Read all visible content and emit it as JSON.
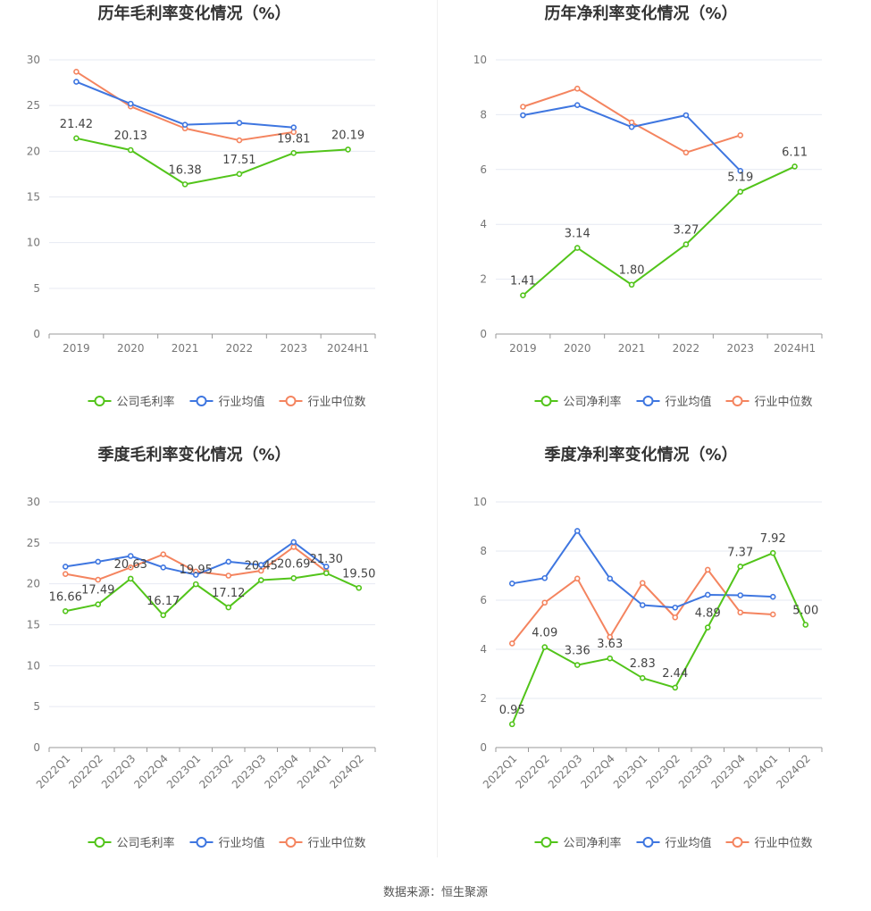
{
  "chart_data": [
    {
      "type": "line",
      "title": "历年毛利率变化情况（%）",
      "categories": [
        "2019",
        "2020",
        "2021",
        "2022",
        "2023",
        "2024H1"
      ],
      "ylim": [
        0,
        30
      ],
      "yticks": [
        0,
        5,
        10,
        15,
        20,
        25,
        30
      ],
      "grid": true,
      "legend": "bottom",
      "series": [
        {
          "name": "公司毛利率",
          "color": "#52c41a",
          "labeled": true,
          "values": [
            21.42,
            20.13,
            16.38,
            17.51,
            19.81,
            20.19
          ],
          "labels": [
            "21.42",
            "20.13",
            "16.38",
            "17.51",
            "19.81",
            "20.19"
          ]
        },
        {
          "name": "行业均值",
          "color": "#3e76e0",
          "labeled": false,
          "values": [
            27.6,
            25.2,
            22.9,
            23.1,
            22.6,
            null
          ]
        },
        {
          "name": "行业中位数",
          "color": "#f4845f",
          "labeled": false,
          "values": [
            28.7,
            24.9,
            22.5,
            21.2,
            22.1,
            null
          ]
        }
      ]
    },
    {
      "type": "line",
      "title": "历年净利率变化情况（%）",
      "categories": [
        "2019",
        "2020",
        "2021",
        "2022",
        "2023",
        "2024H1"
      ],
      "ylim": [
        0,
        10
      ],
      "yticks": [
        0,
        2,
        4,
        6,
        8,
        10
      ],
      "grid": true,
      "legend": "bottom",
      "series": [
        {
          "name": "公司净利率",
          "color": "#52c41a",
          "labeled": true,
          "values": [
            1.41,
            3.14,
            1.8,
            3.27,
            5.19,
            6.11
          ],
          "labels": [
            "1.41",
            "3.14",
            "1.80",
            "3.27",
            "5.19",
            "6.11"
          ]
        },
        {
          "name": "行业均值",
          "color": "#3e76e0",
          "labeled": false,
          "values": [
            7.98,
            8.35,
            7.55,
            7.98,
            5.95,
            null
          ]
        },
        {
          "name": "行业中位数",
          "color": "#f4845f",
          "labeled": false,
          "values": [
            8.29,
            8.95,
            7.72,
            6.62,
            7.25,
            null
          ]
        }
      ]
    },
    {
      "type": "line",
      "title": "季度毛利率变化情况（%）",
      "categories": [
        "2022Q1",
        "2022Q2",
        "2022Q3",
        "2022Q4",
        "2023Q1",
        "2023Q2",
        "2023Q3",
        "2023Q4",
        "2024Q1",
        "2024Q2"
      ],
      "ylim": [
        0,
        30
      ],
      "yticks": [
        0,
        5,
        10,
        15,
        20,
        25,
        30
      ],
      "grid": true,
      "legend": "bottom",
      "rotate_x": true,
      "series": [
        {
          "name": "公司毛利率",
          "color": "#52c41a",
          "labeled": true,
          "values": [
            16.66,
            17.49,
            20.63,
            16.17,
            19.95,
            17.12,
            20.45,
            20.69,
            21.3,
            19.5
          ],
          "labels": [
            "16.66",
            "17.49",
            "20.63",
            "16.17",
            "19.95",
            "17.12",
            "20.45",
            "20.69",
            "21.30",
            "19.50"
          ]
        },
        {
          "name": "行业均值",
          "color": "#3e76e0",
          "labeled": false,
          "values": [
            22.1,
            22.7,
            23.4,
            22.0,
            21.1,
            22.7,
            22.3,
            25.1,
            22.1,
            null
          ]
        },
        {
          "name": "行业中位数",
          "color": "#f4845f",
          "labeled": false,
          "values": [
            21.2,
            20.5,
            22.0,
            23.6,
            21.5,
            21.0,
            21.6,
            24.5,
            21.5,
            null
          ]
        }
      ]
    },
    {
      "type": "line",
      "title": "季度净利率变化情况（%）",
      "categories": [
        "2022Q1",
        "2022Q2",
        "2022Q3",
        "2022Q4",
        "2023Q1",
        "2023Q2",
        "2023Q3",
        "2023Q4",
        "2024Q1",
        "2024Q2"
      ],
      "ylim": [
        0,
        10
      ],
      "yticks": [
        0,
        2,
        4,
        6,
        8,
        10
      ],
      "grid": true,
      "legend": "bottom",
      "rotate_x": true,
      "series": [
        {
          "name": "公司净利率",
          "color": "#52c41a",
          "labeled": true,
          "values": [
            0.95,
            4.09,
            3.36,
            3.63,
            2.83,
            2.44,
            4.89,
            7.37,
            7.92,
            5.0
          ],
          "labels": [
            "0.95",
            "4.09",
            "3.36",
            "3.63",
            "2.83",
            "2.44",
            "4.89",
            "7.37",
            "7.92",
            "5.00"
          ]
        },
        {
          "name": "行业均值",
          "color": "#3e76e0",
          "labeled": false,
          "values": [
            6.68,
            6.9,
            8.82,
            6.88,
            5.8,
            5.7,
            6.22,
            6.2,
            6.14,
            null
          ]
        },
        {
          "name": "行业中位数",
          "color": "#f4845f",
          "labeled": false,
          "values": [
            4.24,
            5.9,
            6.88,
            4.5,
            6.7,
            5.3,
            7.24,
            5.5,
            5.42,
            null
          ]
        }
      ]
    }
  ],
  "footer": {
    "source": "数据来源：恒生聚源"
  }
}
